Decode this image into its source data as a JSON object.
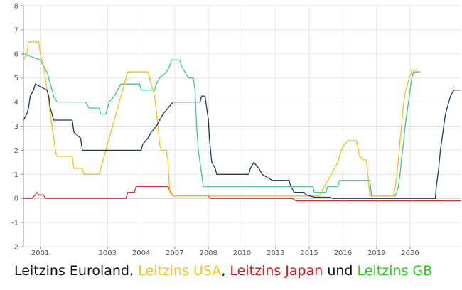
{
  "chart_data": {
    "type": "line",
    "title": "",
    "xlabel": "",
    "ylabel": "",
    "ylim": [
      -2,
      8
    ],
    "yticks": [
      8,
      7,
      6,
      5,
      4,
      3,
      2,
      1,
      0,
      -1,
      -2
    ],
    "xticks": [
      {
        "label": "2001",
        "x": 2001
      },
      {
        "label": "2003",
        "x": 2003
      },
      {
        "label": "2004",
        "x": 2004
      },
      {
        "label": "2007",
        "x": 2005
      },
      {
        "label": "2008",
        "x": 2006
      },
      {
        "label": "2010",
        "x": 2007
      },
      {
        "label": "2013",
        "x": 2008
      },
      {
        "label": "2015",
        "x": 2009
      },
      {
        "label": "2016",
        "x": 2010
      },
      {
        "label": "2019",
        "x": 2011
      },
      {
        "label": "2020",
        "x": 2012
      }
    ],
    "xlim": [
      2000.5,
      2013.5
    ],
    "grid": true,
    "series": [
      {
        "name": "Leitzins Euroland",
        "color": "#1f3a5f",
        "points": [
          [
            2000.5,
            3.25
          ],
          [
            2000.6,
            3.5
          ],
          [
            2000.65,
            3.75
          ],
          [
            2000.7,
            4.25
          ],
          [
            2000.8,
            4.5
          ],
          [
            2000.85,
            4.75
          ],
          [
            2001.2,
            4.5
          ],
          [
            2001.25,
            4.25
          ],
          [
            2001.3,
            3.75
          ],
          [
            2001.4,
            3.25
          ],
          [
            2001.95,
            3.25
          ],
          [
            2002.0,
            2.75
          ],
          [
            2002.2,
            2.5
          ],
          [
            2002.25,
            2.0
          ],
          [
            2004.0,
            2.0
          ],
          [
            2004.05,
            2.25
          ],
          [
            2004.2,
            2.5
          ],
          [
            2004.3,
            2.75
          ],
          [
            2004.45,
            3.0
          ],
          [
            2004.55,
            3.25
          ],
          [
            2004.65,
            3.5
          ],
          [
            2004.8,
            3.75
          ],
          [
            2004.95,
            4.0
          ],
          [
            2005.75,
            4.0
          ],
          [
            2005.8,
            4.25
          ],
          [
            2005.9,
            4.25
          ],
          [
            2005.95,
            3.75
          ],
          [
            2006.0,
            3.25
          ],
          [
            2006.03,
            2.5
          ],
          [
            2006.1,
            1.5
          ],
          [
            2006.2,
            1.25
          ],
          [
            2006.25,
            1.0
          ],
          [
            2007.2,
            1.0
          ],
          [
            2007.25,
            1.25
          ],
          [
            2007.35,
            1.5
          ],
          [
            2007.5,
            1.25
          ],
          [
            2007.6,
            1.0
          ],
          [
            2007.9,
            0.75
          ],
          [
            2008.4,
            0.75
          ],
          [
            2008.45,
            0.5
          ],
          [
            2008.55,
            0.25
          ],
          [
            2008.85,
            0.25
          ],
          [
            2008.9,
            0.15
          ],
          [
            2009.15,
            0.05
          ],
          [
            2009.6,
            0.05
          ],
          [
            2009.7,
            0.0
          ],
          [
            2012.75,
            0.0
          ],
          [
            2012.78,
            0.5
          ],
          [
            2012.85,
            1.25
          ],
          [
            2012.9,
            2.0
          ],
          [
            2012.95,
            2.5
          ],
          [
            2013.0,
            3.0
          ],
          [
            2013.05,
            3.5
          ],
          [
            2013.1,
            3.75
          ],
          [
            2013.15,
            4.0
          ],
          [
            2013.2,
            4.25
          ],
          [
            2013.3,
            4.5
          ],
          [
            2013.5,
            4.5
          ]
        ]
      },
      {
        "name": "Leitzins USA",
        "color": "#f5c21b",
        "points": [
          [
            2000.5,
            5.75
          ],
          [
            2000.6,
            6.0
          ],
          [
            2000.65,
            6.5
          ],
          [
            2000.95,
            6.5
          ],
          [
            2001.0,
            6.0
          ],
          [
            2001.1,
            5.5
          ],
          [
            2001.15,
            5.0
          ],
          [
            2001.2,
            4.5
          ],
          [
            2001.25,
            4.0
          ],
          [
            2001.3,
            3.5
          ],
          [
            2001.35,
            3.0
          ],
          [
            2001.4,
            2.5
          ],
          [
            2001.45,
            2.0
          ],
          [
            2001.5,
            1.75
          ],
          [
            2001.95,
            1.75
          ],
          [
            2002.0,
            1.25
          ],
          [
            2002.25,
            1.25
          ],
          [
            2002.3,
            1.0
          ],
          [
            2002.75,
            1.0
          ],
          [
            2002.8,
            1.25
          ],
          [
            2002.85,
            1.5
          ],
          [
            2002.9,
            1.75
          ],
          [
            2002.95,
            2.0
          ],
          [
            2003.0,
            2.25
          ],
          [
            2003.05,
            2.5
          ],
          [
            2003.1,
            2.75
          ],
          [
            2003.15,
            3.0
          ],
          [
            2003.2,
            3.25
          ],
          [
            2003.25,
            3.5
          ],
          [
            2003.3,
            3.75
          ],
          [
            2003.35,
            4.0
          ],
          [
            2003.4,
            4.25
          ],
          [
            2003.45,
            4.5
          ],
          [
            2003.5,
            4.75
          ],
          [
            2003.55,
            5.0
          ],
          [
            2003.6,
            5.25
          ],
          [
            2004.2,
            5.25
          ],
          [
            2004.3,
            4.75
          ],
          [
            2004.35,
            4.5
          ],
          [
            2004.4,
            4.25
          ],
          [
            2004.5,
            3.0
          ],
          [
            2004.55,
            2.25
          ],
          [
            2004.6,
            2.0
          ],
          [
            2004.75,
            2.0
          ],
          [
            2004.8,
            1.5
          ],
          [
            2004.85,
            0.25
          ],
          [
            2004.9,
            0.25
          ],
          [
            2004.95,
            0.1
          ],
          [
            2009.3,
            0.1
          ],
          [
            2009.35,
            0.25
          ],
          [
            2009.45,
            0.5
          ],
          [
            2009.55,
            0.75
          ],
          [
            2009.65,
            1.0
          ],
          [
            2009.75,
            1.25
          ],
          [
            2009.85,
            1.5
          ],
          [
            2009.9,
            1.75
          ],
          [
            2009.95,
            2.0
          ],
          [
            2010.05,
            2.25
          ],
          [
            2010.15,
            2.4
          ],
          [
            2010.4,
            2.4
          ],
          [
            2010.45,
            2.1
          ],
          [
            2010.5,
            1.75
          ],
          [
            2010.6,
            1.6
          ],
          [
            2010.7,
            1.6
          ],
          [
            2010.8,
            0.1
          ],
          [
            2011.5,
            0.1
          ],
          [
            2011.55,
            0.4
          ],
          [
            2011.6,
            0.9
          ],
          [
            2011.65,
            1.6
          ],
          [
            2011.7,
            2.4
          ],
          [
            2011.75,
            3.1
          ],
          [
            2011.8,
            3.9
          ],
          [
            2011.85,
            4.4
          ],
          [
            2011.9,
            4.6
          ],
          [
            2011.95,
            4.9
          ],
          [
            2012.0,
            5.1
          ],
          [
            2012.05,
            5.3
          ],
          [
            2012.2,
            5.35
          ]
        ]
      },
      {
        "name": "Leitzins Japan",
        "color": "#d9303a",
        "points": [
          [
            2000.5,
            0.0
          ],
          [
            2000.75,
            0.0
          ],
          [
            2000.85,
            0.15
          ],
          [
            2000.9,
            0.25
          ],
          [
            2000.95,
            0.15
          ],
          [
            2001.1,
            0.15
          ],
          [
            2001.15,
            0.0
          ],
          [
            2003.55,
            0.0
          ],
          [
            2003.6,
            0.25
          ],
          [
            2003.8,
            0.25
          ],
          [
            2003.85,
            0.5
          ],
          [
            2004.8,
            0.5
          ],
          [
            2004.85,
            0.3
          ],
          [
            2004.95,
            0.1
          ],
          [
            2006.0,
            0.1
          ],
          [
            2006.05,
            0.0
          ],
          [
            2008.5,
            0.0
          ],
          [
            2008.6,
            -0.1
          ],
          [
            2013.5,
            -0.1
          ]
        ]
      },
      {
        "name": "Leitzins GB",
        "color": "#3fc795",
        "points": [
          [
            2000.5,
            6.0
          ],
          [
            2000.7,
            5.9
          ],
          [
            2001.0,
            5.75
          ],
          [
            2001.1,
            5.5
          ],
          [
            2001.2,
            5.25
          ],
          [
            2001.3,
            4.75
          ],
          [
            2001.4,
            4.25
          ],
          [
            2001.5,
            4.0
          ],
          [
            2002.35,
            4.0
          ],
          [
            2002.45,
            3.75
          ],
          [
            2002.75,
            3.75
          ],
          [
            2002.8,
            3.5
          ],
          [
            2002.95,
            3.5
          ],
          [
            2003.0,
            3.75
          ],
          [
            2003.05,
            4.0
          ],
          [
            2003.2,
            4.25
          ],
          [
            2003.3,
            4.5
          ],
          [
            2003.4,
            4.75
          ],
          [
            2003.95,
            4.75
          ],
          [
            2004.0,
            4.5
          ],
          [
            2004.4,
            4.5
          ],
          [
            2004.45,
            4.75
          ],
          [
            2004.55,
            5.0
          ],
          [
            2004.75,
            5.25
          ],
          [
            2004.85,
            5.5
          ],
          [
            2004.9,
            5.75
          ],
          [
            2005.15,
            5.75
          ],
          [
            2005.2,
            5.5
          ],
          [
            2005.3,
            5.25
          ],
          [
            2005.4,
            5.0
          ],
          [
            2005.55,
            5.0
          ],
          [
            2005.6,
            4.5
          ],
          [
            2005.65,
            3.0
          ],
          [
            2005.7,
            2.0
          ],
          [
            2005.75,
            1.5
          ],
          [
            2005.8,
            1.0
          ],
          [
            2005.85,
            0.5
          ],
          [
            2009.1,
            0.5
          ],
          [
            2009.15,
            0.25
          ],
          [
            2009.5,
            0.25
          ],
          [
            2009.55,
            0.5
          ],
          [
            2009.85,
            0.5
          ],
          [
            2009.9,
            0.75
          ],
          [
            2010.8,
            0.75
          ],
          [
            2010.85,
            0.1
          ],
          [
            2011.55,
            0.1
          ],
          [
            2011.6,
            0.25
          ],
          [
            2011.65,
            0.5
          ],
          [
            2011.7,
            1.0
          ],
          [
            2011.75,
            1.75
          ],
          [
            2011.8,
            2.25
          ],
          [
            2011.85,
            3.0
          ],
          [
            2011.9,
            3.5
          ],
          [
            2011.95,
            4.0
          ],
          [
            2012.0,
            4.5
          ],
          [
            2012.05,
            5.0
          ],
          [
            2012.1,
            5.25
          ],
          [
            2012.3,
            5.25
          ]
        ]
      }
    ]
  },
  "caption": {
    "prefix": "Leitzins Euroland, ",
    "usa": "Leitzins USA",
    "sep1": ", ",
    "japan": "Leitzins Japan",
    "und": " und ",
    "gb": "Leitzins GB",
    "colors": {
      "euroland": "#111111",
      "usa": "#f5c21b",
      "japan": "#e8141c",
      "gb": "#22d313"
    }
  }
}
